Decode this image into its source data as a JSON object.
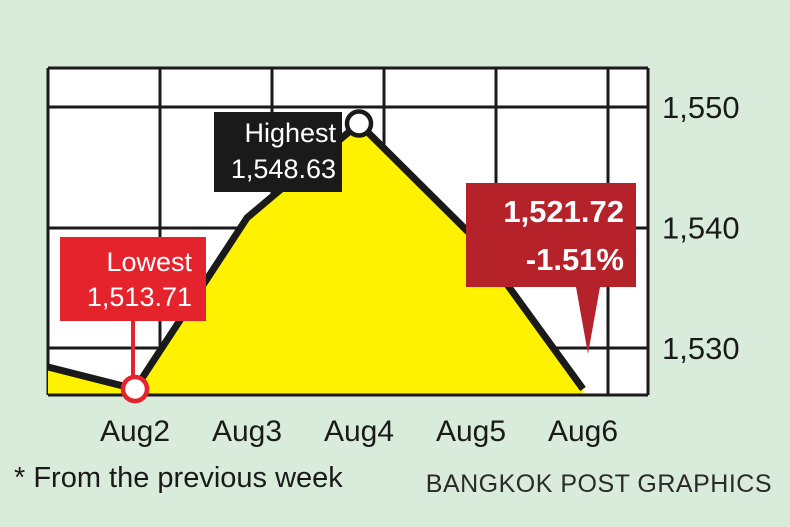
{
  "chart_data": {
    "type": "line",
    "categories": [
      "Aug2",
      "Aug3",
      "Aug4",
      "Aug5",
      "Aug6"
    ],
    "values": [
      1513.71,
      1540.8,
      1548.63,
      1539.4,
      1521.72
    ],
    "ylim": [
      1524,
      1552
    ],
    "yticks": [
      1550,
      1540,
      1530
    ],
    "ytick_labels": [
      "1,550",
      "1,540",
      "1,530"
    ],
    "grid": true,
    "annotations": {
      "lowest": {
        "title": "Lowest",
        "value": "1,513.71"
      },
      "highest": {
        "title": "Highest",
        "value": "1,548.63"
      },
      "last": {
        "value": "1,521.72",
        "change": "-1.51%"
      }
    }
  },
  "colors": {
    "background": "#d9ecdb",
    "plot_bg": "#ffffff",
    "area_fill": "#fff200",
    "line": "#1a1a1a",
    "lowest_box": "#e4232d",
    "highest_box": "#1a1a1a",
    "last_box": "#b5222a"
  },
  "footnote": "* From the previous week",
  "credit": "BANGKOK POST GRAPHICS"
}
